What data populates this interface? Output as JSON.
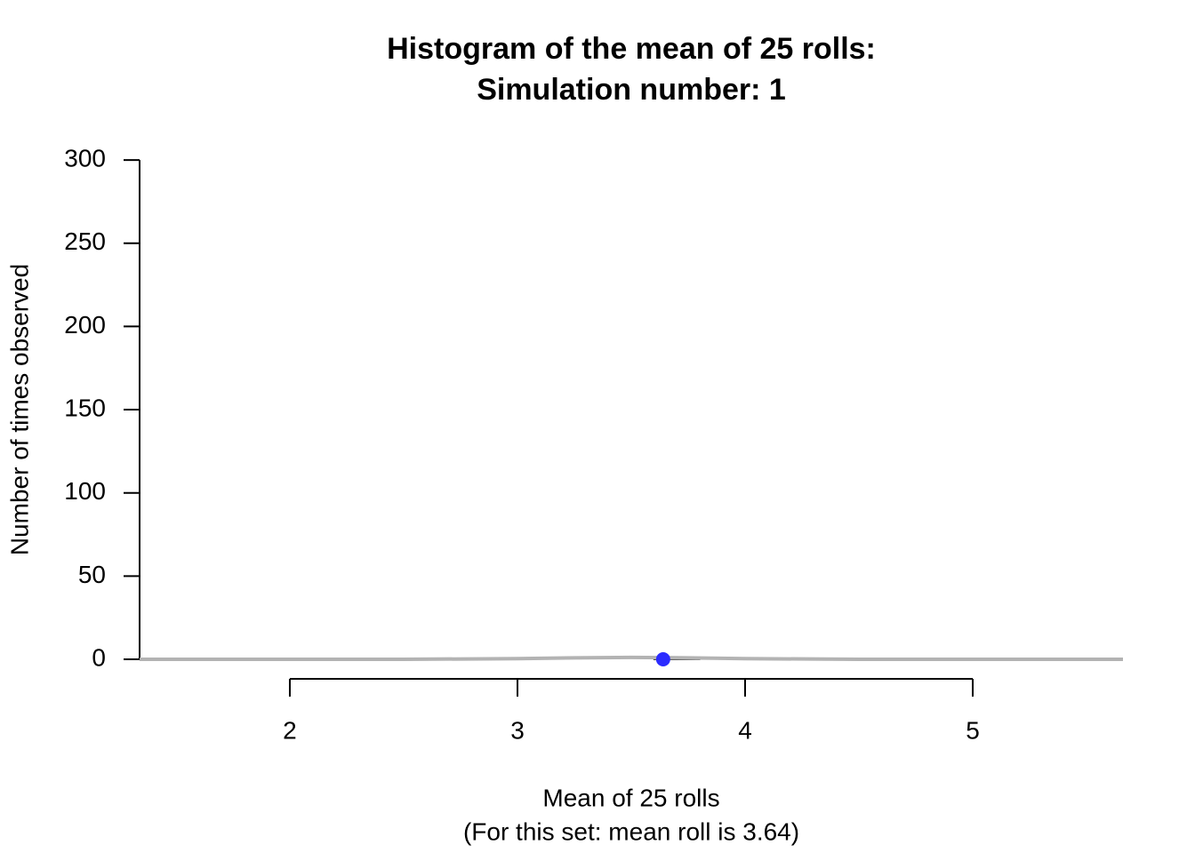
{
  "chart_data": {
    "type": "histogram",
    "title": [
      "Histogram of the mean of 25 rolls:",
      "Simulation number: 1"
    ],
    "xlabel": [
      "Mean of 25 rolls",
      "(For this set: mean roll is 3.64)"
    ],
    "ylabel": "Number of times observed",
    "bins": [
      3.6,
      3.8
    ],
    "counts": [
      1
    ],
    "color": "#000000",
    "curve": {
      "color": "#b3b3b3",
      "x": [
        1.34,
        1.5,
        2,
        2.5,
        3,
        3.25,
        3.5,
        3.75,
        4,
        4.5,
        5,
        5.5,
        5.66
      ],
      "values": [
        0,
        0,
        0.0001,
        0.016,
        0.4,
        0.9,
        1.17,
        0.9,
        0.4,
        0.016,
        0.0001,
        0,
        0
      ]
    },
    "marker": {
      "x": 3.64,
      "y": 0,
      "color": "#2b2bff"
    },
    "xlim": [
      1.34,
      5.66
    ],
    "ylim": [
      -12,
      312
    ],
    "xticks": [
      2,
      3,
      4,
      5
    ],
    "yticks": [
      0,
      50,
      100,
      150,
      200,
      250,
      300
    ]
  }
}
